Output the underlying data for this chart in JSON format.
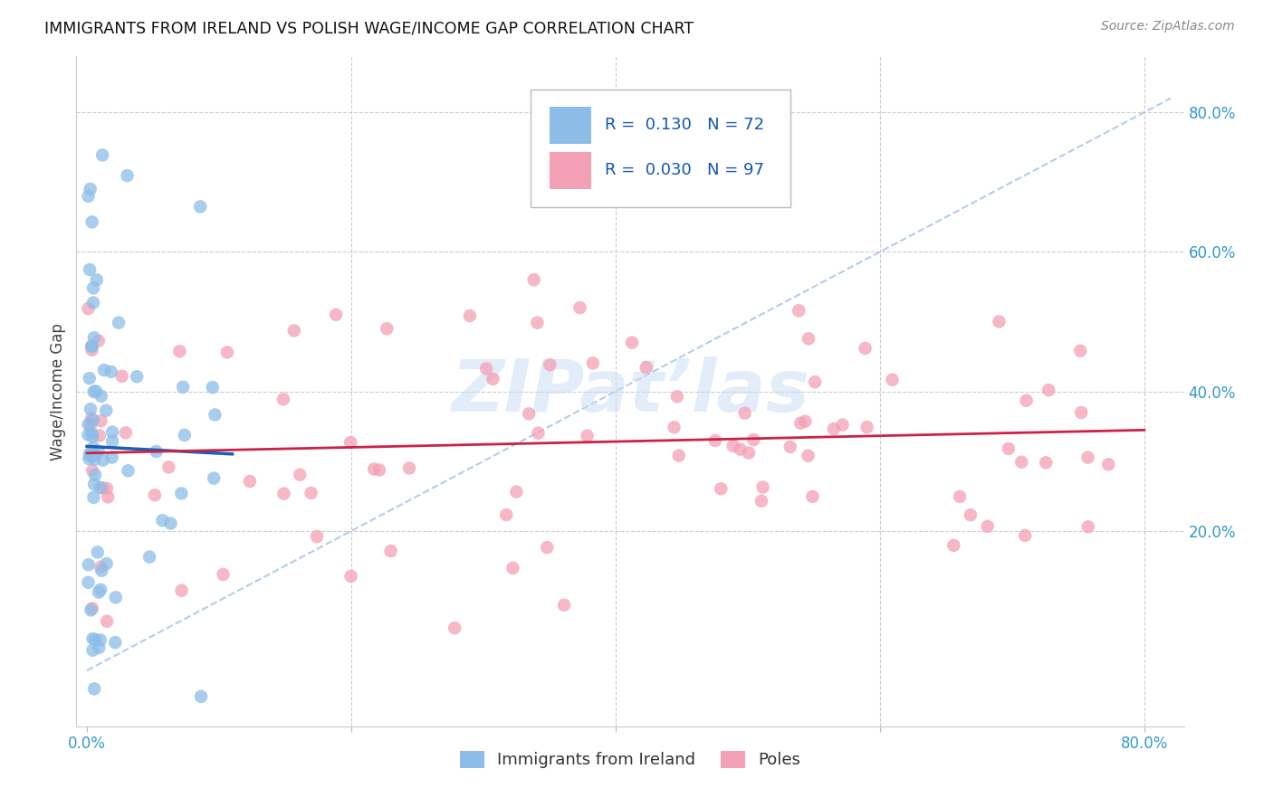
{
  "title": "IMMIGRANTS FROM IRELAND VS POLISH WAGE/INCOME GAP CORRELATION CHART",
  "source": "Source: ZipAtlas.com",
  "ylabel": "Wage/Income Gap",
  "ireland_color": "#8bbde8",
  "poles_color": "#f4a0b5",
  "ireland_line_color": "#1a5fb4",
  "poles_line_color": "#cc2244",
  "diag_color": "#aac8e8",
  "ireland_R": 0.13,
  "ireland_N": 72,
  "poles_R": 0.03,
  "poles_N": 97,
  "legend_label_ireland": "Immigrants from Ireland",
  "legend_label_poles": "Poles",
  "x_ticks": [
    0.0,
    0.2,
    0.4,
    0.6,
    0.8
  ],
  "x_tick_labels": [
    "0.0%",
    "",
    "",
    "",
    "80.0%"
  ],
  "y_ticks_right": [
    0.2,
    0.4,
    0.6,
    0.8
  ],
  "y_tick_labels_right": [
    "20.0%",
    "40.0%",
    "60.0%",
    "80.0%"
  ],
  "xlim": [
    -0.008,
    0.83
  ],
  "ylim": [
    -0.08,
    0.88
  ]
}
